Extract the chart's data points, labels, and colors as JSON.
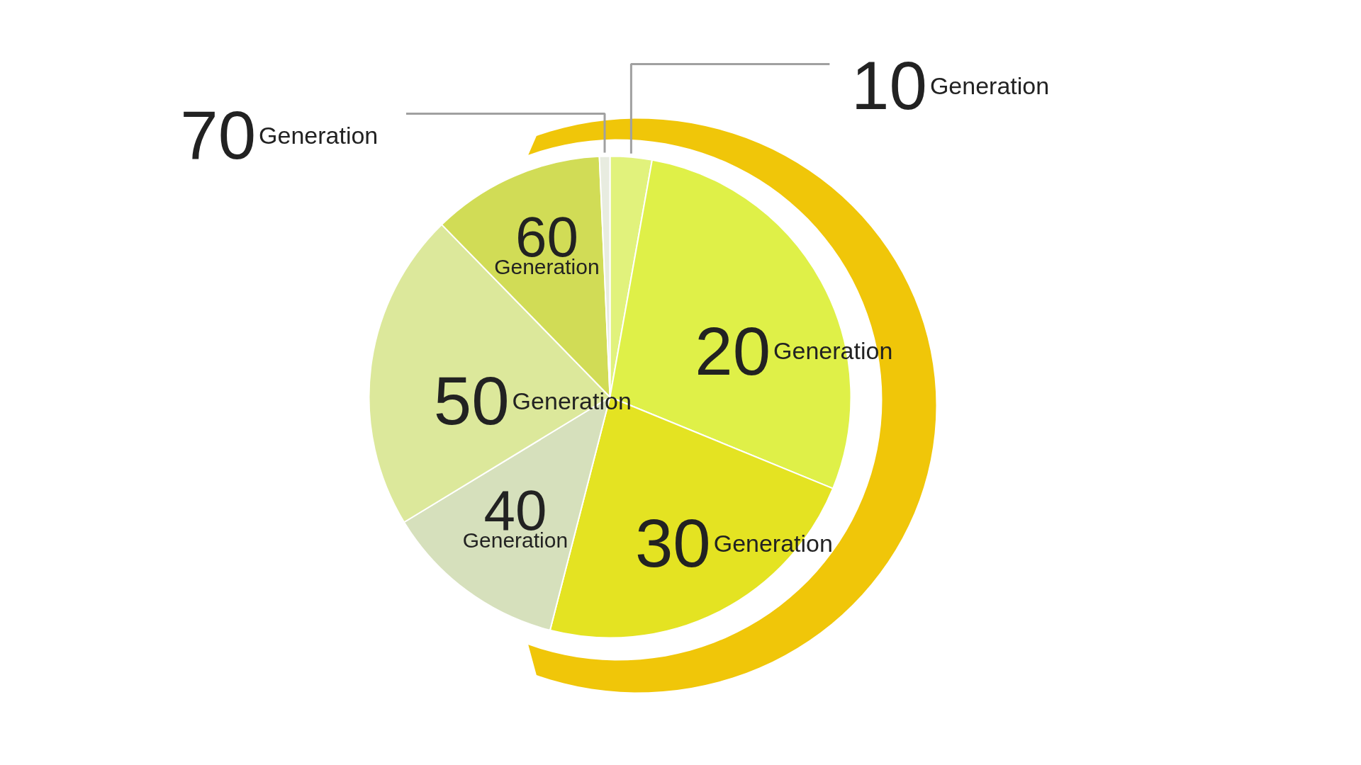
{
  "chart_data": {
    "type": "pie",
    "categories": [
      "10Generation",
      "20Generation",
      "30Generation",
      "40Generation",
      "50Generation",
      "60Generation",
      "70Generation"
    ],
    "values": [
      2.8,
      28.4,
      22.8,
      12.3,
      21.4,
      11.6,
      0.7
    ],
    "colors": [
      "#e1f27c",
      "#dff048",
      "#e4e322",
      "#d6e0bc",
      "#dce89b",
      "#d1dc56",
      "#e8ece0"
    ]
  }
}
